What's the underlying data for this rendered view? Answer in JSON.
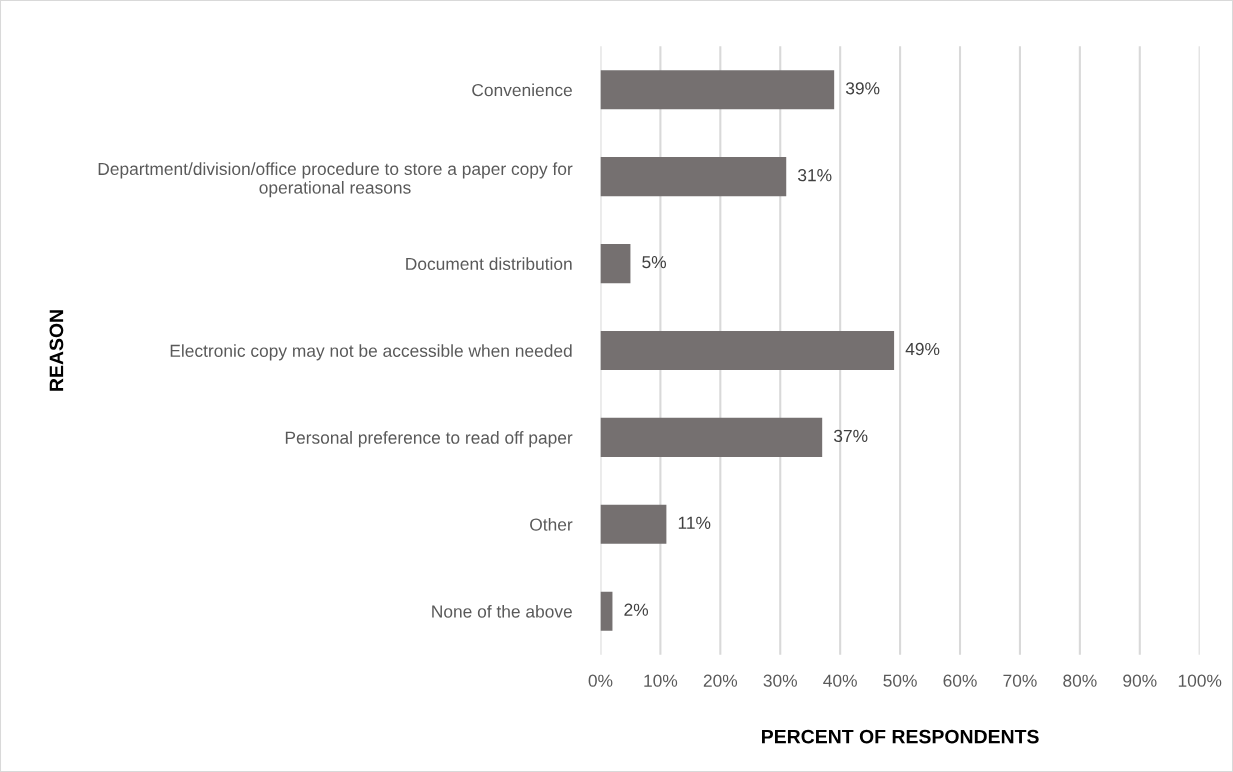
{
  "chart_data": {
    "type": "bar",
    "orientation": "horizontal",
    "xlabel": "PERCENT OF RESPONDENTS",
    "ylabel": "REASON",
    "categories": [
      "Convenience",
      "Department/division/office procedure to store a paper copy for\noperational reasons",
      "Document distribution",
      "Electronic copy may not be accessible when needed",
      "Personal preference to read off paper",
      "Other",
      "None of the above"
    ],
    "values": [
      39,
      31,
      5,
      49,
      37,
      11,
      2
    ],
    "value_labels": [
      "39%",
      "31%",
      "5%",
      "49%",
      "37%",
      "11%",
      "2%"
    ],
    "color": "#757070",
    "xlim": [
      0,
      100
    ],
    "xticks": [
      {
        "value": 0,
        "label": "0%"
      },
      {
        "value": 10,
        "label": "10%"
      },
      {
        "value": 20,
        "label": "20%"
      },
      {
        "value": 30,
        "label": "30%"
      },
      {
        "value": 40,
        "label": "40%"
      },
      {
        "value": 50,
        "label": "50%"
      },
      {
        "value": 60,
        "label": "60%"
      },
      {
        "value": 70,
        "label": "70%"
      },
      {
        "value": 80,
        "label": "80%"
      },
      {
        "value": 90,
        "label": "90%"
      },
      {
        "value": 100,
        "label": "100%"
      }
    ],
    "grid": "x",
    "legend": false
  }
}
